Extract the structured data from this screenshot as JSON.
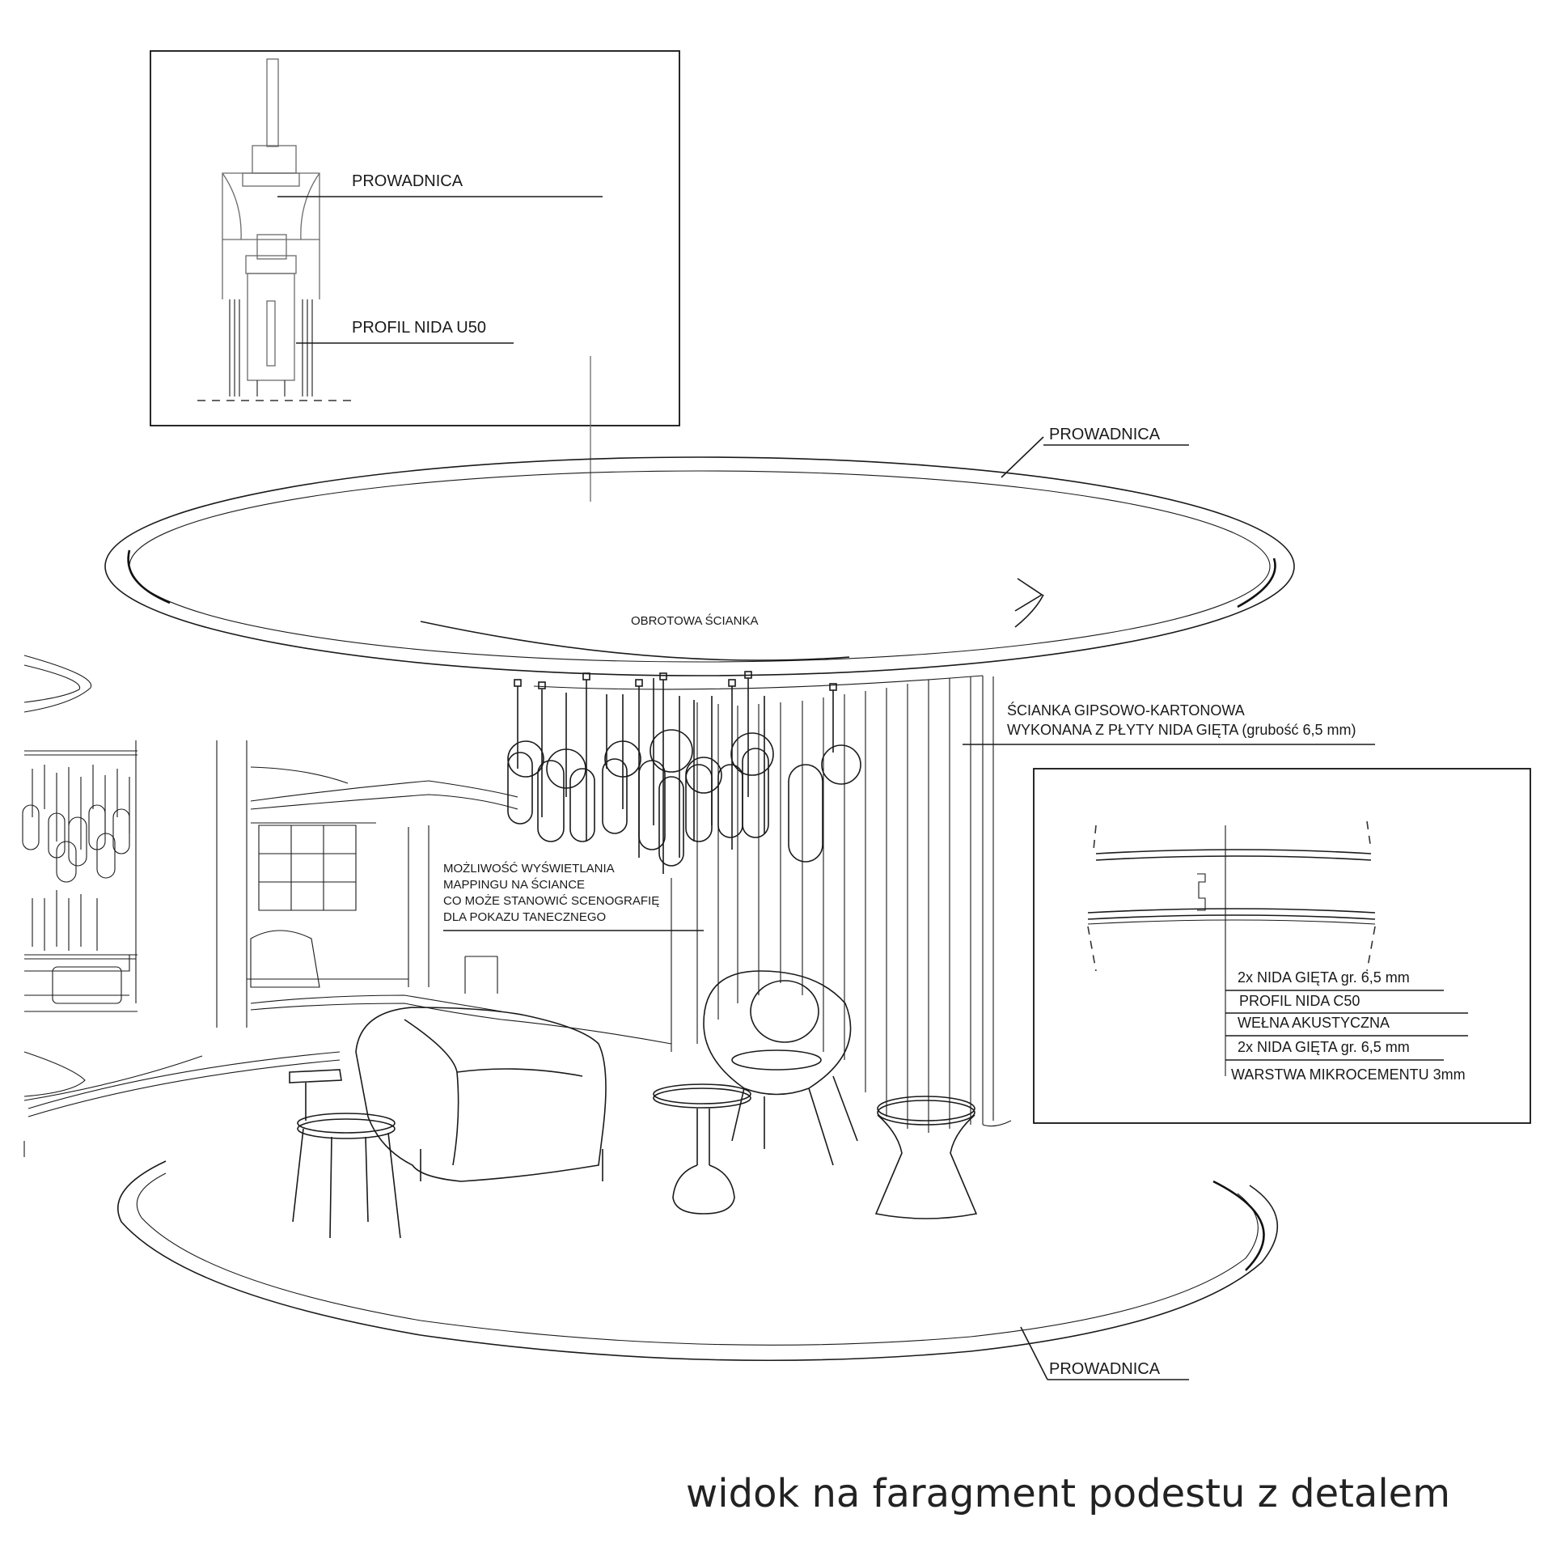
{
  "detail_top": {
    "label_guide": "PROWADNICA",
    "label_profile": "PROFIL NIDA U50"
  },
  "scene": {
    "label_guide_top": "PROWADNICA",
    "label_rotating_wall": "OBROTOWA ŚCIANKA",
    "label_wall_line1": "ŚCIANKA GIPSOWO-KARTONOWA",
    "label_wall_line2": "WYKONANA Z PŁYTY NIDA GIĘTA (grubość 6,5 mm)",
    "label_mapping": [
      "MOŻLIWOŚĆ WYŚWIETLANIA",
      "MAPPINGU NA ŚCIANCE",
      "CO MOŻE STANOWIĆ SCENOGRAFIĘ",
      "DLA POKAZU TANECZNEGO"
    ],
    "label_guide_bottom": "PROWADNICA"
  },
  "detail_section": {
    "layers": [
      "2x NIDA GIĘTA gr. 6,5 mm",
      "PROFIL NIDA C50",
      "WEŁNA AKUSTYCZNA",
      "2x NIDA GIĘTA gr. 6,5 mm",
      "WARSTWA MIKROCEMENTU 3mm"
    ]
  },
  "caption": "widok na faragment podestu z detalem"
}
